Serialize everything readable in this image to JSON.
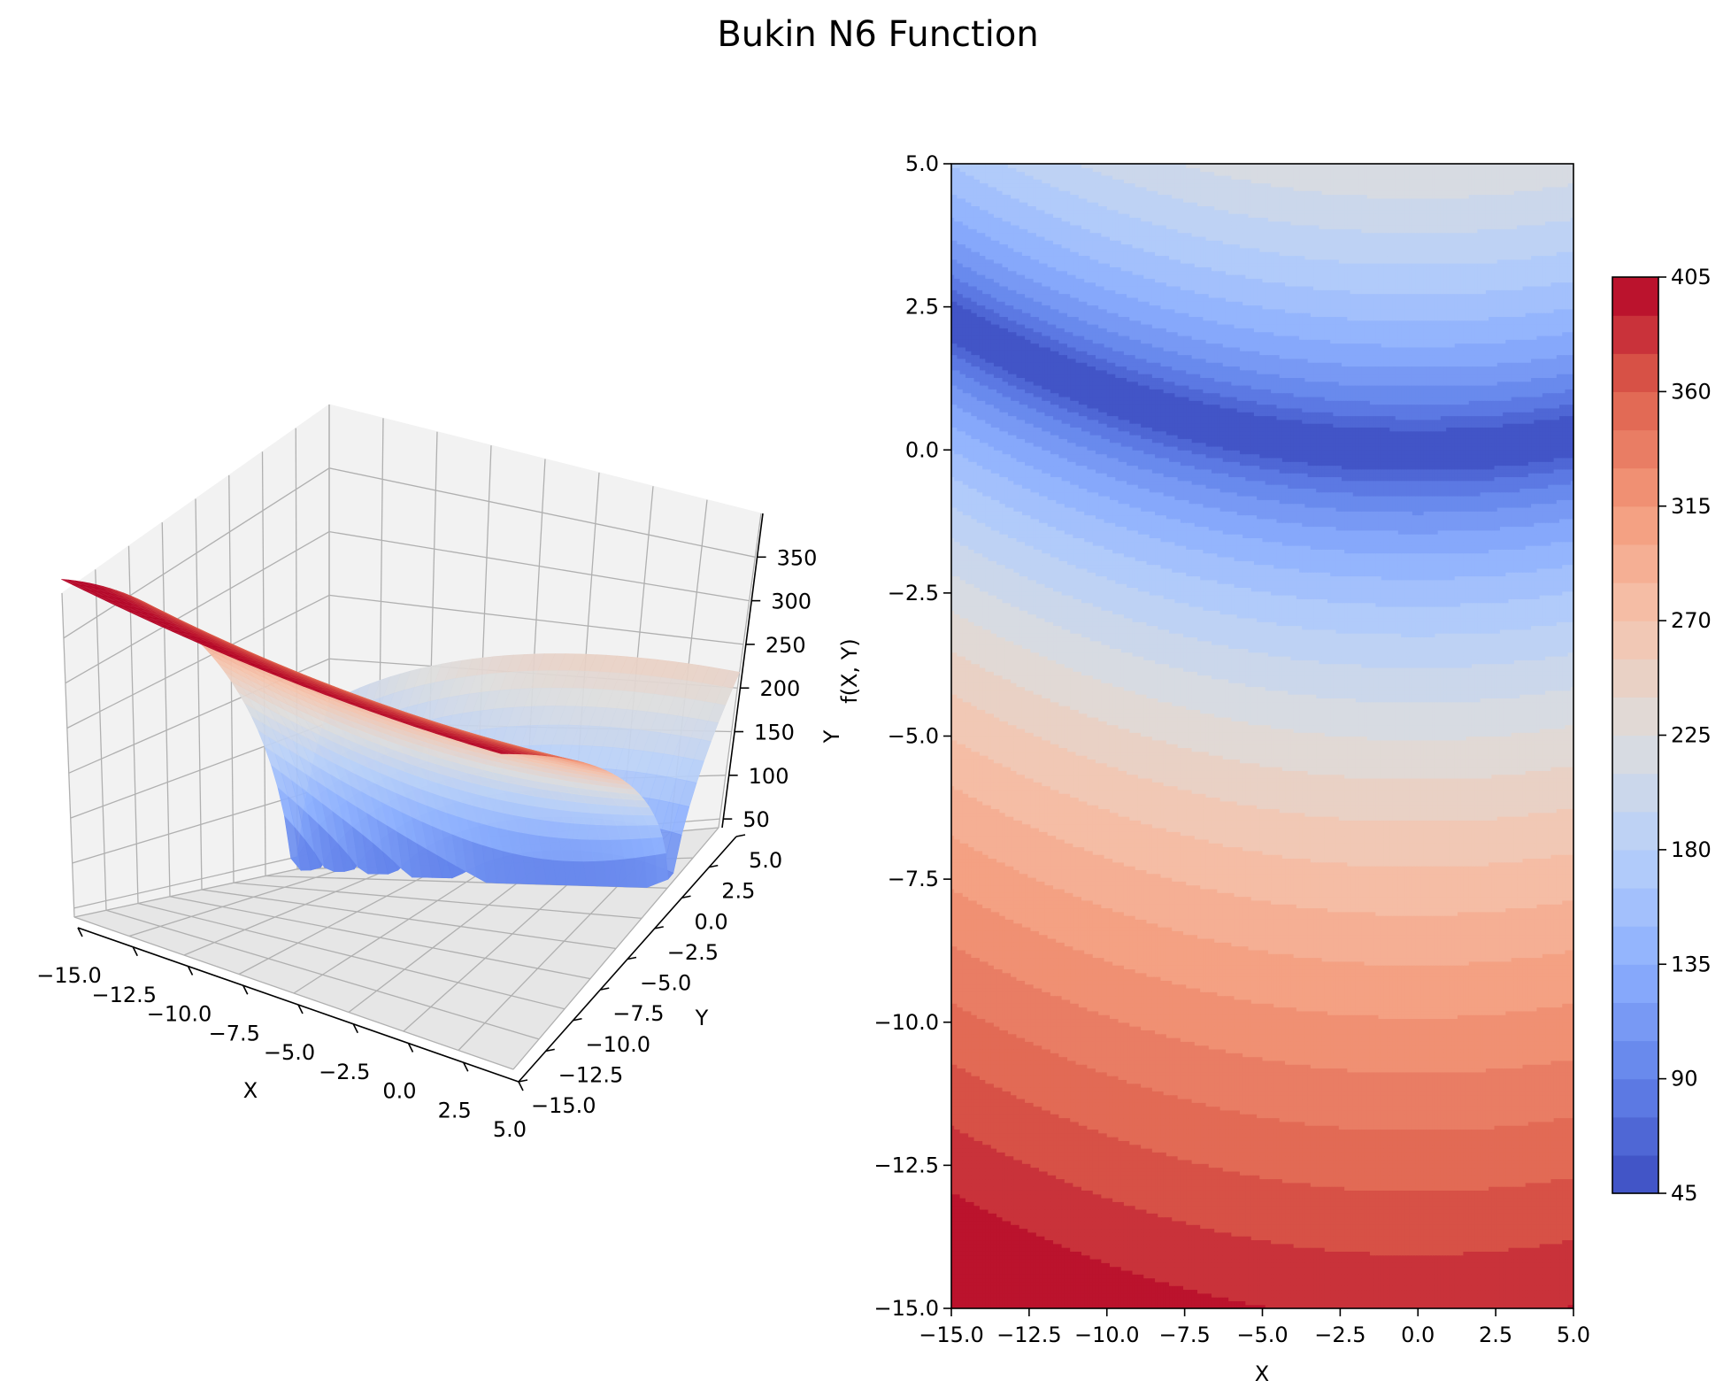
{
  "figure": {
    "title": "Bukin N6 Function"
  },
  "chart_data": [
    {
      "type": "surface",
      "function": "100*sqrt(|Y - 0.01*X^2|) + 0.01*|X + 10|",
      "xlabel": "X",
      "ylabel": "Y",
      "zlabel": "f(X, Y)",
      "xlim": [
        -15,
        5
      ],
      "ylim": [
        -15,
        5
      ],
      "xticks": [
        "−15.0",
        "−12.5",
        "−10.0",
        "−7.5",
        "−5.0",
        "−2.5",
        "0.0",
        "2.5",
        "5.0"
      ],
      "yticks": [
        "−15.0",
        "−12.5",
        "−10.0",
        "−7.5",
        "−5.0",
        "−2.5",
        "0.0",
        "2.5",
        "5.0"
      ],
      "zticks": [
        "50",
        "100",
        "150",
        "200",
        "250",
        "300",
        "350"
      ],
      "colormap": "coolwarm",
      "grid": true
    },
    {
      "type": "contourf",
      "function": "100*sqrt(|Y - 0.01*X^2|) + 0.01*|X + 10|",
      "xlabel": "X",
      "ylabel": "",
      "xlim": [
        -15,
        5
      ],
      "ylim": [
        -15,
        5
      ],
      "xticks": [
        "−15.0",
        "−12.5",
        "−10.0",
        "−7.5",
        "−5.0",
        "−2.5",
        "0.0",
        "2.5",
        "5.0"
      ],
      "yticks": [
        "−15.0",
        "−12.5",
        "−10.0",
        "−7.5",
        "−5.0",
        "−2.5",
        "0.0",
        "2.5",
        "5.0"
      ],
      "levels": {
        "min": 45,
        "max": 405,
        "step": 15
      },
      "colormap": "coolwarm",
      "colorbar": {
        "placement": "right",
        "ticks": [
          "45",
          "90",
          "135",
          "180",
          "225",
          "270",
          "315",
          "360",
          "405"
        ]
      }
    }
  ]
}
